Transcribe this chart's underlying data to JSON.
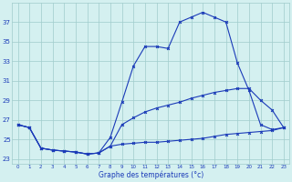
{
  "xlabel": "Graphe des températures (°c)",
  "hours": [
    0,
    1,
    2,
    3,
    4,
    5,
    6,
    7,
    8,
    9,
    10,
    11,
    12,
    13,
    14,
    15,
    16,
    17,
    18,
    19,
    20,
    21,
    22,
    23
  ],
  "line_max": [
    26.5,
    26.2,
    24.1,
    23.9,
    23.8,
    23.7,
    23.5,
    23.6,
    25.2,
    28.8,
    32.5,
    34.5,
    34.5,
    34.3,
    37.0,
    37.5,
    38.0,
    37.5,
    37.0,
    32.8,
    30.0,
    26.5,
    26.0,
    26.2
  ],
  "line_mid": [
    26.5,
    26.2,
    24.1,
    23.9,
    23.8,
    23.7,
    23.5,
    23.6,
    24.3,
    26.5,
    27.2,
    27.8,
    28.2,
    28.5,
    28.8,
    29.2,
    29.5,
    29.8,
    30.0,
    30.2,
    30.2,
    29.0,
    28.0,
    26.2
  ],
  "line_min": [
    26.5,
    26.2,
    24.1,
    23.9,
    23.8,
    23.7,
    23.5,
    23.6,
    24.3,
    24.5,
    24.6,
    24.7,
    24.7,
    24.8,
    24.9,
    25.0,
    25.1,
    25.3,
    25.5,
    25.6,
    25.7,
    25.8,
    25.9,
    26.2
  ],
  "bg_color": "#d4f0f0",
  "grid_color": "#a0cccc",
  "line_color": "#1a3ab8",
  "ylim": [
    22.5,
    39
  ],
  "yticks": [
    23,
    25,
    27,
    29,
    31,
    33,
    35,
    37
  ],
  "xticks": [
    0,
    1,
    2,
    3,
    4,
    5,
    6,
    7,
    8,
    9,
    10,
    11,
    12,
    13,
    14,
    15,
    16,
    17,
    18,
    19,
    20,
    21,
    22,
    23
  ]
}
